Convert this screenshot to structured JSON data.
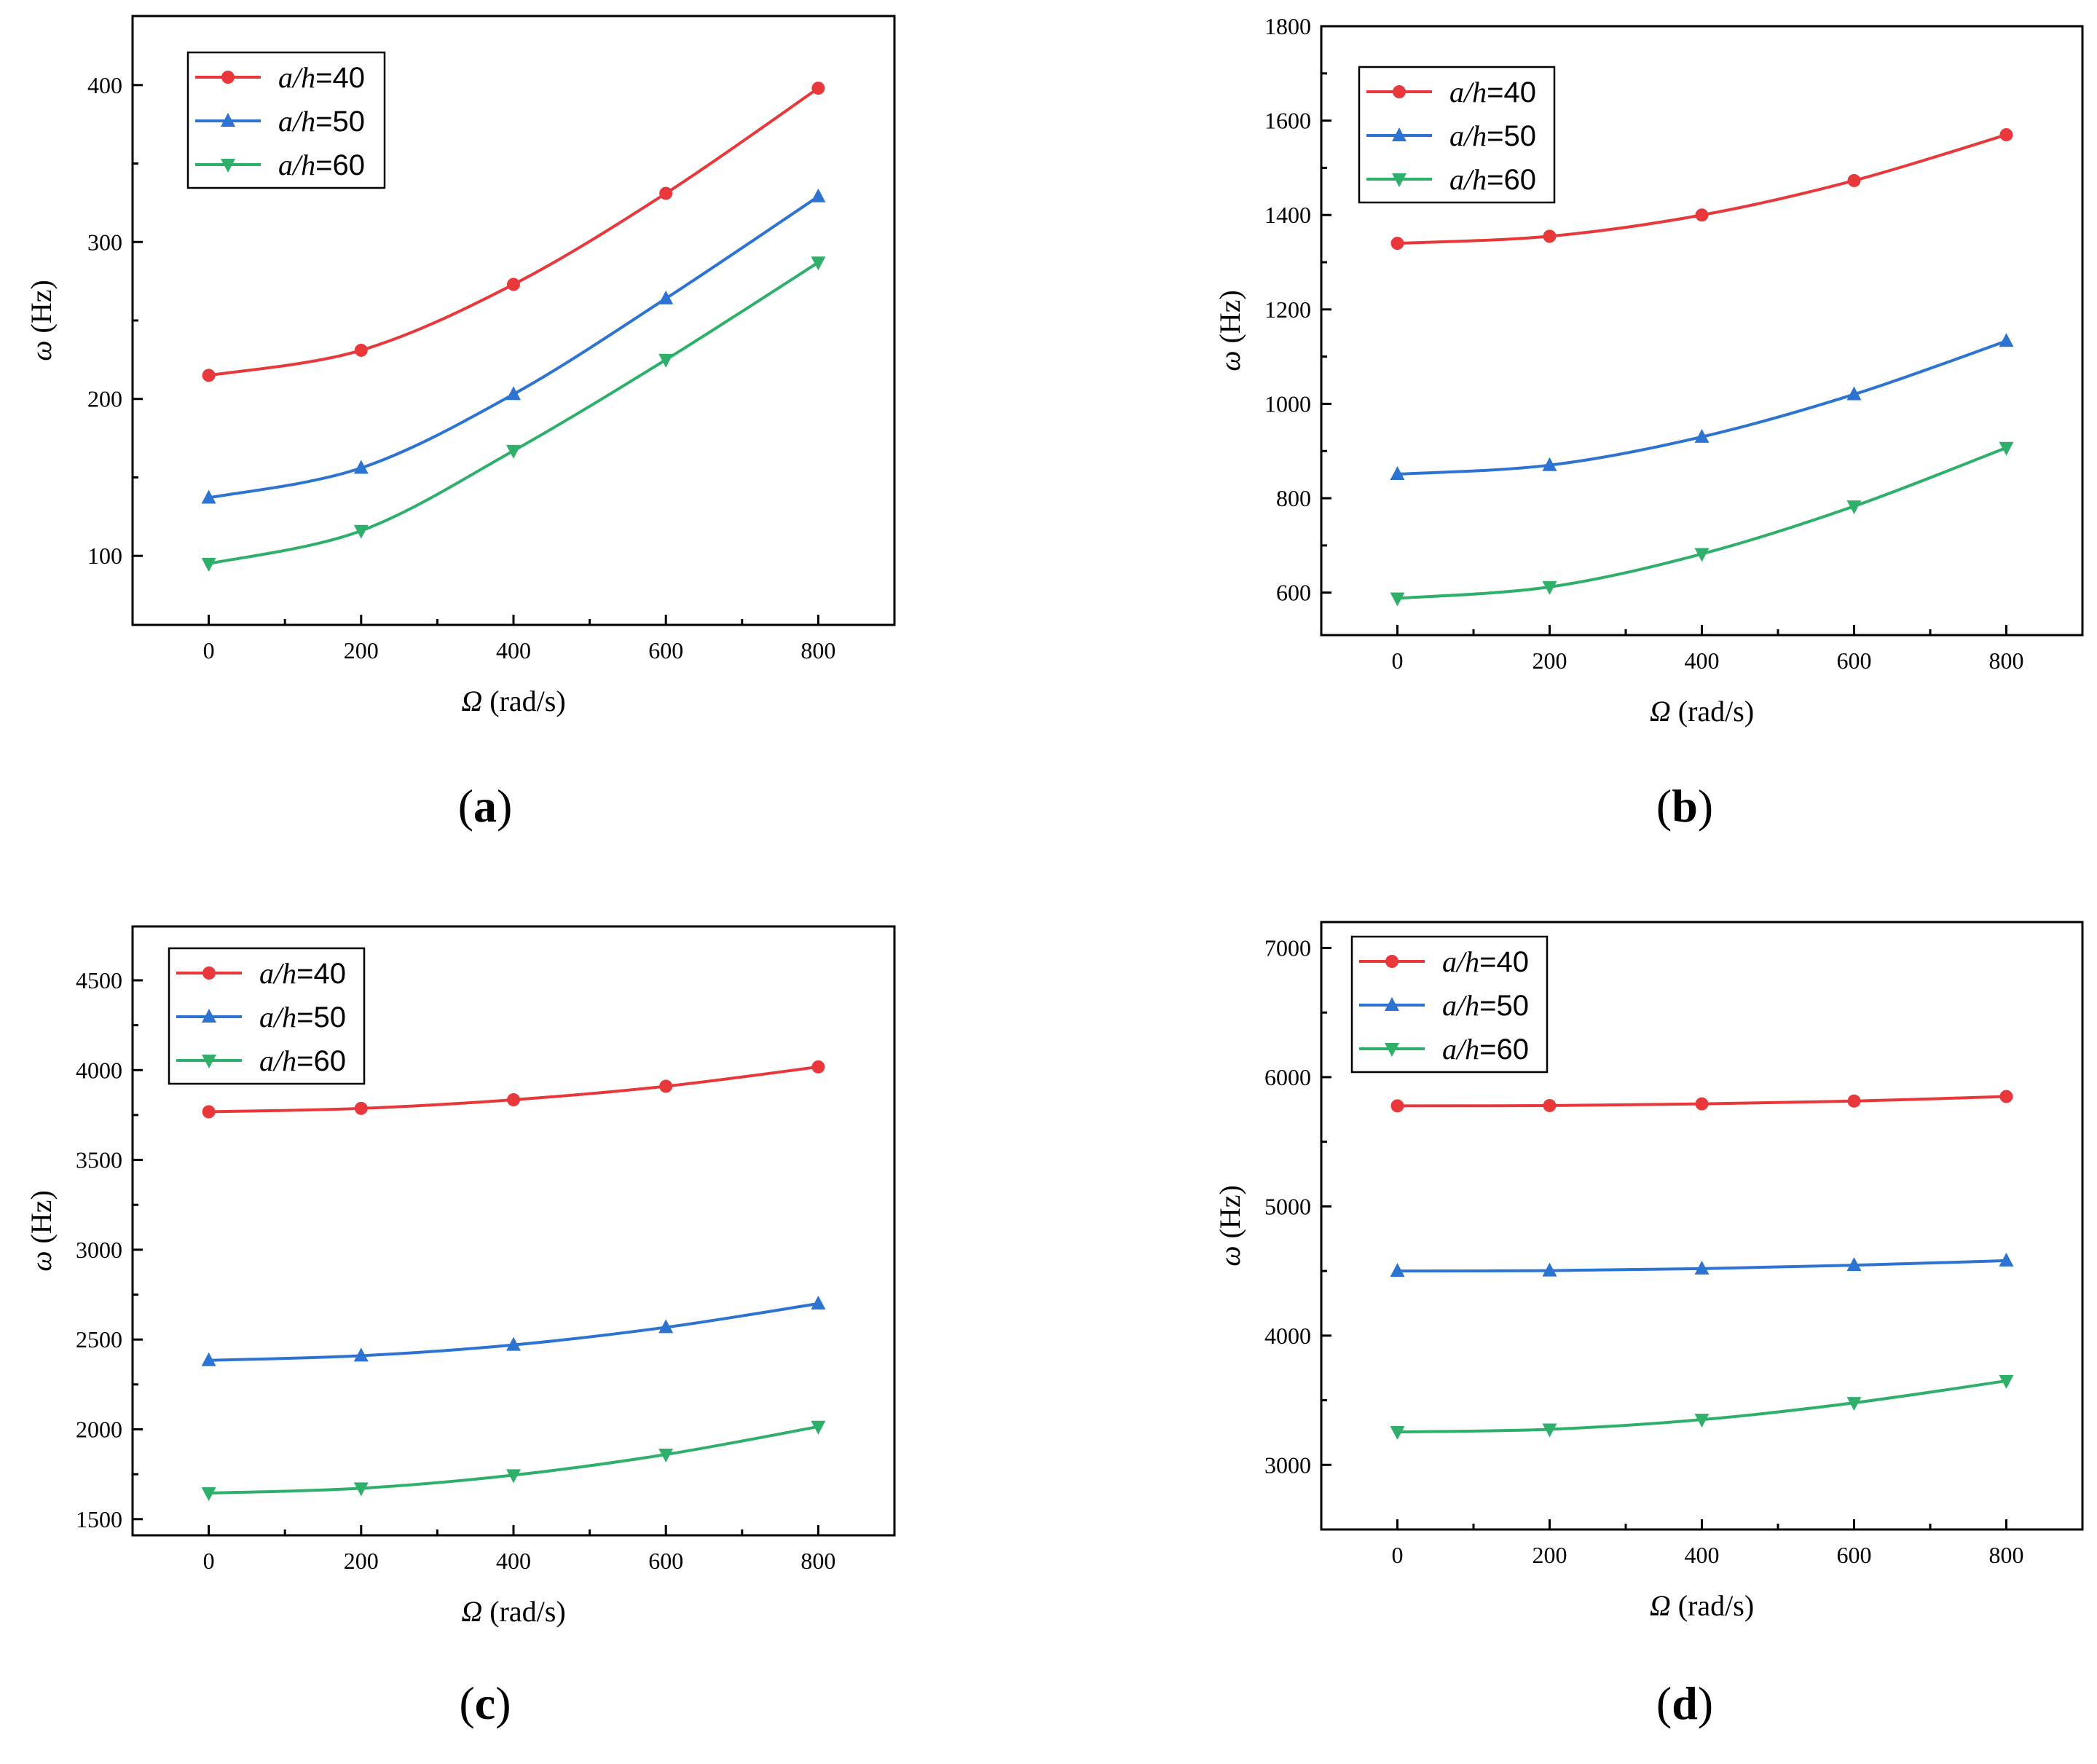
{
  "chart_data": [
    {
      "type": "line",
      "panel": "(a)",
      "caption_letter": "a",
      "x": [
        0,
        200,
        400,
        600,
        800
      ],
      "xlim": [
        -100,
        900
      ],
      "xticks": [
        0,
        200,
        400,
        600,
        800
      ],
      "ylim": [
        56,
        444
      ],
      "yticks": [
        100,
        200,
        300,
        400
      ],
      "xlabel": "Ω (rad/s)",
      "ylabel": "ω (Hz)",
      "legend_position": "top-left",
      "series": [
        {
          "name": "a/h=40",
          "color": "#e8383b",
          "marker": "circle",
          "values": [
            215,
            231,
            273,
            331,
            398
          ]
        },
        {
          "name": "a/h=50",
          "color": "#2c73d2",
          "marker": "triangle-up",
          "values": [
            137,
            156,
            203,
            264,
            329
          ]
        },
        {
          "name": "a/h=60",
          "color": "#2eb06a",
          "marker": "triangle-down",
          "values": [
            95,
            116,
            167,
            225,
            287
          ]
        }
      ]
    },
    {
      "type": "line",
      "panel": "(b)",
      "caption_letter": "b",
      "x": [
        0,
        200,
        400,
        600,
        800
      ],
      "xlim": [
        -100,
        900
      ],
      "xticks": [
        0,
        200,
        400,
        600,
        800
      ],
      "ylim": [
        510,
        1800
      ],
      "yticks": [
        600,
        800,
        1000,
        1200,
        1400,
        1600,
        1800
      ],
      "xlabel": "Ω (rad/s)",
      "ylabel": "ω (Hz)",
      "legend_position": "top-left",
      "series": [
        {
          "name": "a/h=40",
          "color": "#e8383b",
          "marker": "circle",
          "values": [
            1340,
            1355,
            1400,
            1473,
            1570
          ]
        },
        {
          "name": "a/h=50",
          "color": "#2c73d2",
          "marker": "triangle-up",
          "values": [
            851,
            870,
            930,
            1020,
            1133
          ]
        },
        {
          "name": "a/h=60",
          "color": "#2eb06a",
          "marker": "triangle-down",
          "values": [
            588,
            612,
            682,
            783,
            907
          ]
        }
      ]
    },
    {
      "type": "line",
      "panel": "(c)",
      "caption_letter": "c",
      "x": [
        0,
        200,
        400,
        600,
        800
      ],
      "xlim": [
        -100,
        900
      ],
      "xticks": [
        0,
        200,
        400,
        600,
        800
      ],
      "ylim": [
        1410,
        4800
      ],
      "yticks": [
        1500,
        2000,
        2500,
        3000,
        3500,
        4000,
        4500
      ],
      "xlabel": "Ω (rad/s)",
      "ylabel": "ω (Hz)",
      "legend_position": "top-left",
      "series": [
        {
          "name": "a/h=40",
          "color": "#e8383b",
          "marker": "circle",
          "values": [
            3768,
            3787,
            3835,
            3910,
            4018
          ]
        },
        {
          "name": "a/h=50",
          "color": "#2c73d2",
          "marker": "triangle-up",
          "values": [
            2384,
            2410,
            2470,
            2568,
            2700
          ]
        },
        {
          "name": "a/h=60",
          "color": "#2eb06a",
          "marker": "triangle-down",
          "values": [
            1645,
            1672,
            1745,
            1860,
            2015
          ]
        }
      ]
    },
    {
      "type": "line",
      "panel": "(d)",
      "caption_letter": "d",
      "x": [
        0,
        200,
        400,
        600,
        800
      ],
      "xlim": [
        -100,
        900
      ],
      "xticks": [
        0,
        200,
        400,
        600,
        800
      ],
      "ylim": [
        2500,
        7200
      ],
      "yticks": [
        3000,
        4000,
        5000,
        6000,
        7000
      ],
      "xlabel": "Ω (rad/s)",
      "ylabel": "ω (Hz)",
      "legend_position": "top-left",
      "series": [
        {
          "name": "a/h=40",
          "color": "#e8383b",
          "marker": "circle",
          "values": [
            5778,
            5780,
            5793,
            5815,
            5850
          ]
        },
        {
          "name": "a/h=50",
          "color": "#2c73d2",
          "marker": "triangle-up",
          "values": [
            4500,
            4503,
            4518,
            4545,
            4580
          ]
        },
        {
          "name": "a/h=60",
          "color": "#2eb06a",
          "marker": "triangle-down",
          "values": [
            3255,
            3275,
            3350,
            3480,
            3650
          ]
        }
      ]
    }
  ]
}
